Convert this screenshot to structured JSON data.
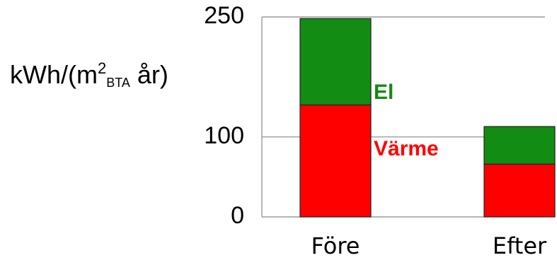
{
  "chart_data": {
    "type": "stacked_bar",
    "y_label": [
      "kWh/(m",
      "2",
      "BTA",
      " år)"
    ],
    "categories": [
      "Före",
      "Efter"
    ],
    "series": [
      {
        "name": "Värme",
        "color": "#ff0000",
        "values": [
          140,
          66
        ]
      },
      {
        "name": "El",
        "color": "#128c12",
        "values": [
          108,
          47
        ]
      }
    ],
    "ylim": [
      0,
      250
    ],
    "yticks": [
      0,
      100,
      250
    ],
    "grid": true
  }
}
